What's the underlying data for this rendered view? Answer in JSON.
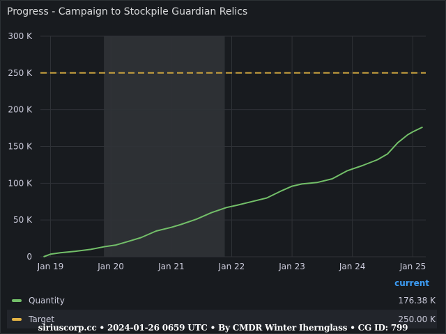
{
  "panel": {
    "title": "Progress - Campaign to Stockpile Guardian Relics"
  },
  "chart_data": {
    "type": "line",
    "title": "Progress - Campaign to Stockpile Guardian Relics",
    "xlabel": "",
    "ylabel": "",
    "ylim": [
      0,
      300000
    ],
    "y_ticks": [
      {
        "value": 0,
        "label": "0"
      },
      {
        "value": 50000,
        "label": "50 K"
      },
      {
        "value": 100000,
        "label": "100 K"
      },
      {
        "value": 150000,
        "label": "150 K"
      },
      {
        "value": 200000,
        "label": "200 K"
      },
      {
        "value": 250000,
        "label": "250 K"
      },
      {
        "value": 300000,
        "label": "300 K"
      }
    ],
    "x_range": [
      "2018-11-01",
      "2025-03-20"
    ],
    "x_ticks": [
      {
        "value": "2019-01-01",
        "label": "Jan 19"
      },
      {
        "value": "2020-01-01",
        "label": "Jan 20"
      },
      {
        "value": "2021-01-01",
        "label": "Jan 21"
      },
      {
        "value": "2022-01-01",
        "label": "Jan 22"
      },
      {
        "value": "2023-01-01",
        "label": "Jan 23"
      },
      {
        "value": "2024-01-01",
        "label": "Jan 24"
      },
      {
        "value": "2025-01-01",
        "label": "Jan 25"
      }
    ],
    "highlight_region": [
      "2019-11-20",
      "2021-11-20"
    ],
    "grid": true,
    "series": [
      {
        "name": "Quantity",
        "color": "#73bf69",
        "style": "solid",
        "x": [
          "2018-11-20",
          "2019-01-01",
          "2019-03-01",
          "2019-06-01",
          "2019-09-01",
          "2019-12-01",
          "2020-02-01",
          "2020-04-01",
          "2020-07-01",
          "2020-10-01",
          "2021-01-01",
          "2021-03-01",
          "2021-06-01",
          "2021-09-01",
          "2021-12-01",
          "2022-02-01",
          "2022-05-01",
          "2022-08-01",
          "2022-11-01",
          "2023-01-01",
          "2023-03-01",
          "2023-06-01",
          "2023-09-01",
          "2023-12-01",
          "2024-03-01",
          "2024-06-01",
          "2024-08-01",
          "2024-10-01",
          "2024-12-01",
          "2025-01-01",
          "2025-03-01"
        ],
        "values": [
          0,
          3500,
          5500,
          7500,
          10000,
          14000,
          16000,
          20000,
          26000,
          35000,
          40000,
          44000,
          51000,
          60000,
          67000,
          70000,
          75000,
          80000,
          90000,
          96000,
          99000,
          101000,
          106000,
          117000,
          124000,
          132000,
          140000,
          155000,
          166000,
          170000,
          176380
        ]
      },
      {
        "name": "Target",
        "color": "#fac858",
        "style": "dashed",
        "x": [
          "2018-11-01",
          "2025-03-20"
        ],
        "values": [
          250000,
          250000
        ]
      }
    ]
  },
  "legend": {
    "header": "current",
    "items": [
      {
        "name": "Quantity",
        "value": "176.38 K",
        "color": "#73bf69"
      },
      {
        "name": "Target",
        "value": "250.00 K",
        "color": "#e5b445"
      }
    ]
  },
  "footer": "siriuscorp.cc • 2024-01-26 0659 UTC • By CMDR Winter Ihernglаss • CG ID: 799"
}
